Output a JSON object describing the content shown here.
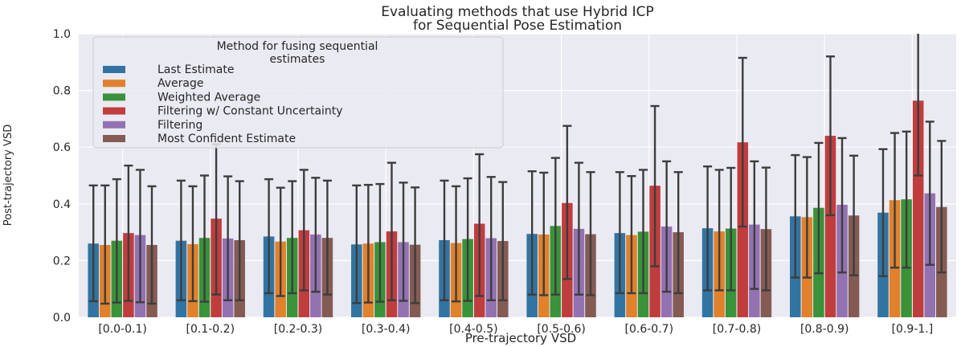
{
  "chart_data": {
    "type": "bar",
    "title_lines": [
      "Evaluating methods that use Hybrid ICP",
      "for Sequential Pose Estimation"
    ],
    "xlabel": "Pre-trajectory VSD",
    "ylabel": "Post-trajectory VSD",
    "ylim": [
      0,
      1.0
    ],
    "yticks": [
      "0.0",
      "0.2",
      "0.4",
      "0.6",
      "0.8",
      "1.0"
    ],
    "grid": true,
    "legend": {
      "title_lines": [
        "Method for fusing sequential",
        "estimates"
      ],
      "placement": "top-left"
    },
    "categories": [
      "[0.0-0.1)",
      "[0.1-0.2)",
      "[0.2-0.3)",
      "[0.3-0.4)",
      "[0.4-0.5)",
      "[0.5-0.6)",
      "[0.6-0.7)",
      "[0.7-0.8)",
      "[0.8-0.9)",
      "[0.9-1.]"
    ],
    "series": [
      {
        "name": "Last Estimate",
        "color": "#3274a1",
        "values": [
          0.26,
          0.27,
          0.285,
          0.257,
          0.272,
          0.294,
          0.297,
          0.314,
          0.356,
          0.369
        ],
        "err_low": [
          0.057,
          0.06,
          0.085,
          0.05,
          0.06,
          0.08,
          0.085,
          0.095,
          0.14,
          0.145
        ],
        "err_high": [
          0.465,
          0.482,
          0.487,
          0.465,
          0.482,
          0.515,
          0.512,
          0.532,
          0.572,
          0.593
        ]
      },
      {
        "name": "Average",
        "color": "#e1812c",
        "values": [
          0.255,
          0.258,
          0.267,
          0.26,
          0.262,
          0.292,
          0.29,
          0.303,
          0.353,
          0.413
        ],
        "err_low": [
          0.048,
          0.057,
          0.075,
          0.052,
          0.056,
          0.078,
          0.085,
          0.095,
          0.14,
          0.175
        ],
        "err_high": [
          0.465,
          0.462,
          0.457,
          0.467,
          0.462,
          0.51,
          0.498,
          0.52,
          0.565,
          0.65
        ]
      },
      {
        "name": "Weighted Average",
        "color": "#3a923a",
        "values": [
          0.27,
          0.28,
          0.28,
          0.265,
          0.276,
          0.322,
          0.302,
          0.313,
          0.386,
          0.416
        ],
        "err_low": [
          0.052,
          0.055,
          0.085,
          0.055,
          0.058,
          0.08,
          0.085,
          0.095,
          0.155,
          0.175
        ],
        "err_high": [
          0.487,
          0.5,
          0.48,
          0.47,
          0.49,
          0.562,
          0.52,
          0.527,
          0.615,
          0.655
        ]
      },
      {
        "name": "Filtering w/ Constant Uncertainty",
        "color": "#c03d3e",
        "values": [
          0.297,
          0.348,
          0.307,
          0.303,
          0.33,
          0.403,
          0.464,
          0.617,
          0.64,
          0.764
        ],
        "err_low": [
          0.058,
          0.08,
          0.095,
          0.06,
          0.075,
          0.135,
          0.18,
          0.32,
          0.36,
          0.5
        ],
        "err_high": [
          0.535,
          0.61,
          0.52,
          0.545,
          0.575,
          0.675,
          0.745,
          0.915,
          0.92,
          1.0
        ]
      },
      {
        "name": "Filtering",
        "color": "#9372b2",
        "values": [
          0.29,
          0.278,
          0.292,
          0.265,
          0.279,
          0.312,
          0.32,
          0.327,
          0.397,
          0.437
        ],
        "err_low": [
          0.053,
          0.06,
          0.09,
          0.058,
          0.06,
          0.08,
          0.09,
          0.1,
          0.158,
          0.185
        ],
        "err_high": [
          0.52,
          0.497,
          0.492,
          0.475,
          0.495,
          0.545,
          0.55,
          0.55,
          0.632,
          0.69
        ]
      },
      {
        "name": "Most Confident Estimate",
        "color": "#845b53",
        "values": [
          0.255,
          0.272,
          0.28,
          0.256,
          0.269,
          0.293,
          0.3,
          0.311,
          0.359,
          0.389
        ],
        "err_low": [
          0.048,
          0.06,
          0.08,
          0.05,
          0.06,
          0.078,
          0.085,
          0.095,
          0.148,
          0.158
        ],
        "err_high": [
          0.462,
          0.48,
          0.482,
          0.458,
          0.477,
          0.512,
          0.512,
          0.528,
          0.57,
          0.622
        ]
      }
    ]
  }
}
